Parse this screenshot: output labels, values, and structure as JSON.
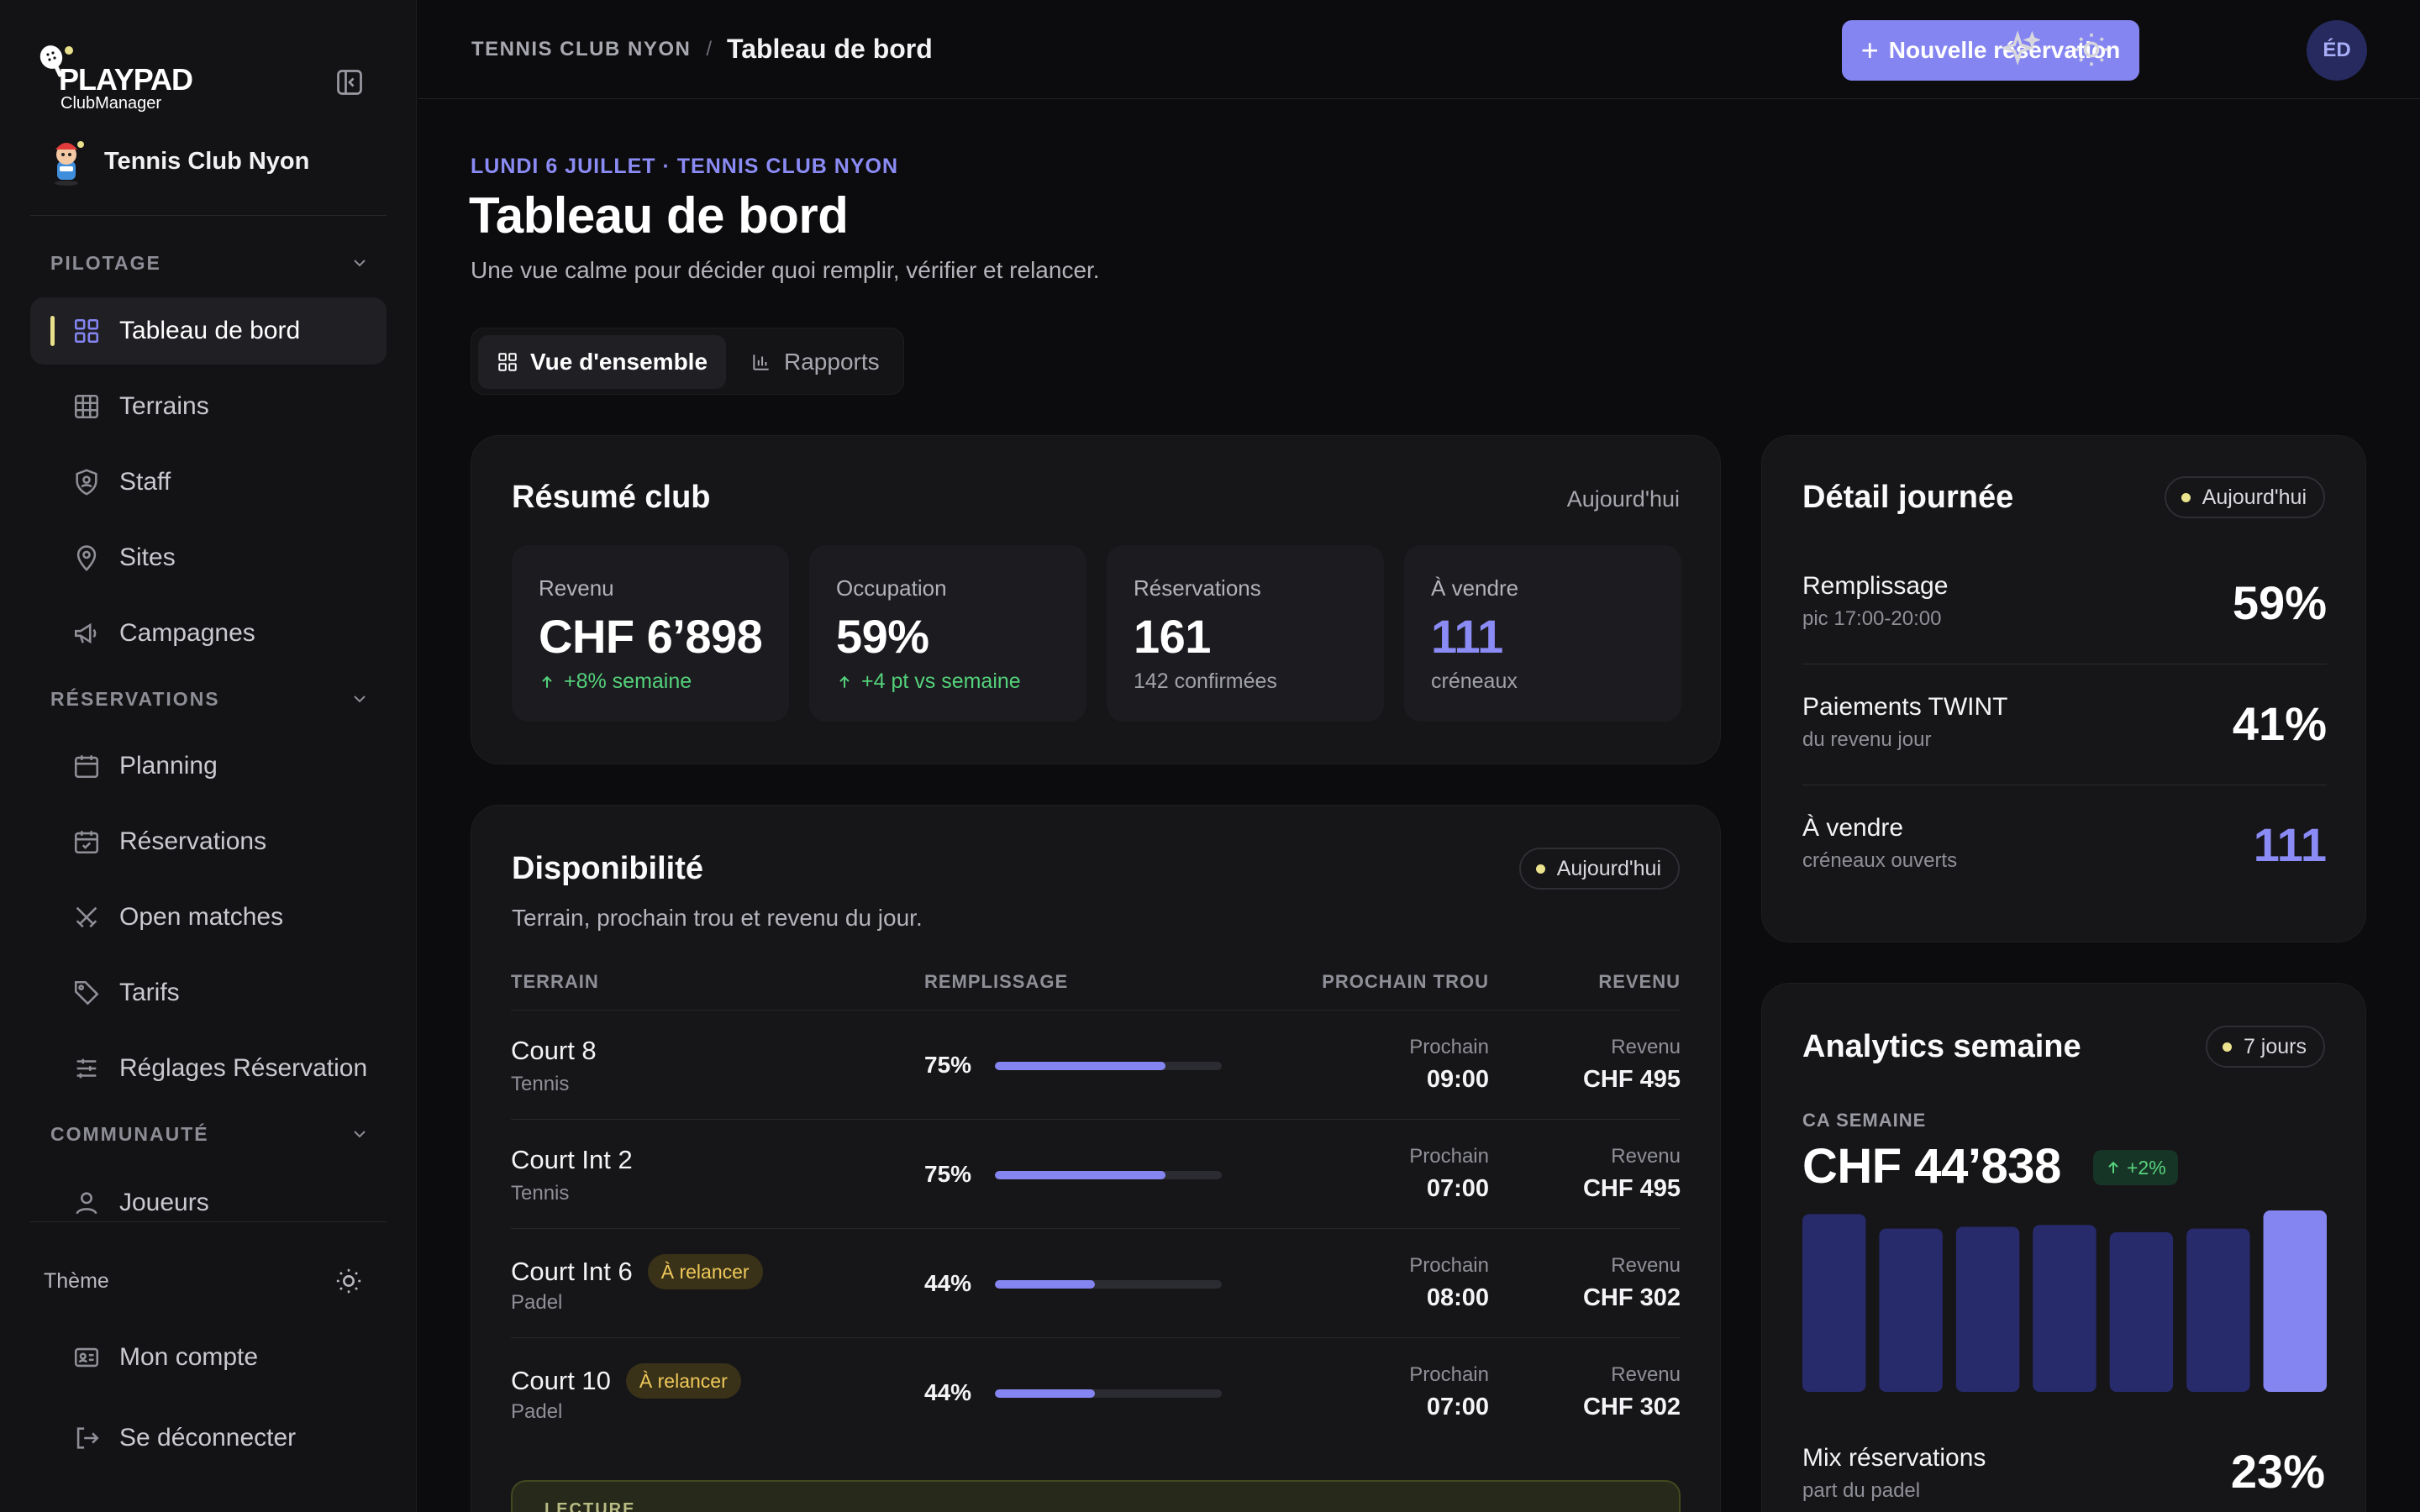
{
  "brand": {
    "logo_main": "PLAYPAD",
    "logo_sub": "ClubManager"
  },
  "club": {
    "name": "Tennis Club Nyon"
  },
  "sidebar": {
    "groups": [
      {
        "label": "PILOTAGE",
        "items": [
          {
            "label": "Tableau de bord",
            "icon": "grid-icon"
          },
          {
            "label": "Terrains",
            "icon": "court-grid-icon"
          },
          {
            "label": "Staff",
            "icon": "shield-user-icon"
          },
          {
            "label": "Sites",
            "icon": "map-pin-icon"
          },
          {
            "label": "Campagnes",
            "icon": "megaphone-icon"
          }
        ]
      },
      {
        "label": "RÉSERVATIONS",
        "items": [
          {
            "label": "Planning",
            "icon": "calendar-icon"
          },
          {
            "label": "Réservations",
            "icon": "calendar-check-icon"
          },
          {
            "label": "Open matches",
            "icon": "swords-icon"
          },
          {
            "label": "Tarifs",
            "icon": "tag-icon"
          },
          {
            "label": "Réglages Réservation",
            "icon": "sliders-icon"
          }
        ]
      },
      {
        "label": "COMMUNAUTÉ",
        "items": [
          {
            "label": "Joueurs",
            "icon": "user-icon"
          }
        ]
      }
    ],
    "theme_label": "Thème",
    "account_label": "Mon compte",
    "logout_label": "Se déconnecter"
  },
  "topbar": {
    "breadcrumb_club": "TENNIS CLUB NYON",
    "breadcrumb_separator": "/",
    "breadcrumb_page": "Tableau de bord",
    "new_booking_label": "Nouvelle réservation",
    "avatar_initials": "ÉD"
  },
  "header": {
    "eyebrow": "LUNDI 6 JUILLET · TENNIS CLUB NYON",
    "title": "Tableau de bord",
    "subtitle": "Une vue calme pour décider quoi remplir, vérifier et relancer.",
    "tabs": [
      {
        "label": "Vue d'ensemble"
      },
      {
        "label": "Rapports"
      }
    ]
  },
  "summary": {
    "title": "Résumé club",
    "period": "Aujourd'hui",
    "stats": [
      {
        "label": "Revenu",
        "value": "CHF 6’898",
        "note": "+8% semaine"
      },
      {
        "label": "Occupation",
        "value": "59%",
        "note": "+4 pt vs semaine"
      },
      {
        "label": "Réservations",
        "value": "161",
        "note": "142 confirmées"
      },
      {
        "label": "À vendre",
        "value": "111",
        "note": "créneaux"
      }
    ]
  },
  "availability": {
    "title": "Disponibilité",
    "subtitle": "Terrain, prochain trou et revenu du jour.",
    "pill": "Aujourd'hui",
    "columns": {
      "terrain": "TERRAIN",
      "fill": "REMPLISSAGE",
      "next": "PROCHAIN TROU",
      "revenue": "REVENU"
    },
    "next_label": "Prochain",
    "revenue_label": "Revenu",
    "rows": [
      {
        "court": "Court 8",
        "type": "Tennis",
        "badge": "",
        "fill_pct": 75,
        "fill_text": "75%",
        "next": "09:00",
        "revenue": "CHF 495"
      },
      {
        "court": "Court Int 2",
        "type": "Tennis",
        "badge": "",
        "fill_pct": 75,
        "fill_text": "75%",
        "next": "07:00",
        "revenue": "CHF 495"
      },
      {
        "court": "Court Int 6",
        "type": "Padel",
        "badge": "À relancer",
        "fill_pct": 44,
        "fill_text": "44%",
        "next": "08:00",
        "revenue": "CHF 302"
      },
      {
        "court": "Court 10",
        "type": "Padel",
        "badge": "À relancer",
        "fill_pct": 44,
        "fill_text": "44%",
        "next": "07:00",
        "revenue": "CHF 302"
      }
    ],
    "lecture_label": "LECTURE"
  },
  "day_detail": {
    "title": "Détail journée",
    "pill": "Aujourd'hui",
    "rows": [
      {
        "name": "Remplissage",
        "sub": "pic 17:00-20:00",
        "value": "59%"
      },
      {
        "name": "Paiements TWINT",
        "sub": "du revenu jour",
        "value": "41%"
      },
      {
        "name": "À vendre",
        "sub": "créneaux ouverts",
        "value": "111"
      }
    ]
  },
  "analytics": {
    "title": "Analytics semaine",
    "pill": "7 jours",
    "ca_label": "CA SEMAINE",
    "ca_value": "CHF 44’838",
    "growth": "+2%",
    "week_bars": [
      0.98,
      0.9,
      0.91,
      0.92,
      0.88,
      0.9,
      1.0
    ],
    "highlight_index": 6,
    "colors": {
      "bar": "#272a6b",
      "highlight": "#8585f2"
    },
    "mix_name": "Mix réservations",
    "mix_sub": "part du padel",
    "mix_value": "23%"
  },
  "colors": {
    "accent": "#8585f2",
    "positive": "#54d17a",
    "warning": "#efc95a",
    "indicator": "#e8e08a"
  }
}
